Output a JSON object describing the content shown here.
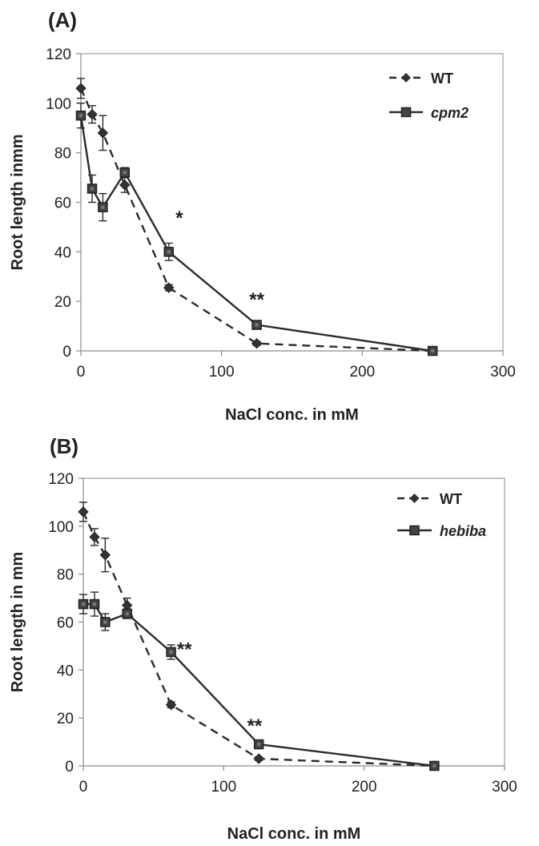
{
  "chart_data": [
    {
      "type": "line",
      "panel_label": "(A)",
      "xlabel": "NaCl conc. in mM",
      "ylabel": "Root length inmm",
      "xlim": [
        0,
        300
      ],
      "ylim": [
        0,
        120
      ],
      "xticks": [
        "0",
        "100",
        "200",
        "300"
      ],
      "yticks": [
        "0",
        "20",
        "40",
        "60",
        "80",
        "100",
        "120"
      ],
      "legend_position": "top-right",
      "series": [
        {
          "name": "WT",
          "italic": false,
          "style": "dashed",
          "marker": "diamond",
          "x": [
            0,
            8,
            15.6,
            31.2,
            62.5,
            125,
            250
          ],
          "y": [
            106,
            95.5,
            88,
            67,
            25.5,
            3,
            0
          ],
          "err": [
            4,
            3.5,
            7,
            3,
            1.2,
            0.8,
            0
          ]
        },
        {
          "name": "cpm2",
          "italic": true,
          "style": "solid",
          "marker": "square",
          "x": [
            0,
            8,
            15.6,
            31.2,
            62.5,
            125,
            250
          ],
          "y": [
            95,
            65.5,
            58,
            72,
            40,
            10.5,
            0
          ],
          "err": [
            5,
            5.5,
            5.5,
            2,
            3.5,
            1,
            0
          ]
        }
      ],
      "annotations": [
        {
          "text": "*",
          "x": 70,
          "y": 55
        },
        {
          "text": "**",
          "x": 125,
          "y": 22
        }
      ]
    },
    {
      "type": "line",
      "panel_label": "(B)",
      "xlabel": "NaCl conc. in mM",
      "ylabel": "Root length in mm",
      "xlim": [
        0,
        300
      ],
      "ylim": [
        0,
        120
      ],
      "xticks": [
        "0",
        "100",
        "200",
        "300"
      ],
      "yticks": [
        "0",
        "20",
        "40",
        "60",
        "80",
        "100",
        "120"
      ],
      "legend_position": "top-right",
      "series": [
        {
          "name": "WT",
          "italic": false,
          "style": "dashed",
          "marker": "diamond",
          "x": [
            0,
            8,
            15.6,
            31.2,
            62.5,
            125,
            250
          ],
          "y": [
            106,
            95.5,
            88,
            67,
            25.5,
            3,
            0
          ],
          "err": [
            4,
            3.5,
            7,
            3,
            1.2,
            0.8,
            0
          ]
        },
        {
          "name": "hebiba",
          "italic": true,
          "style": "solid",
          "marker": "square",
          "x": [
            0,
            8,
            15.6,
            31.2,
            62.5,
            125,
            250
          ],
          "y": [
            67.5,
            67.5,
            60,
            63.5,
            47.5,
            9,
            0
          ],
          "err": [
            4,
            5,
            3.5,
            2,
            3,
            1,
            0
          ]
        }
      ],
      "annotations": [
        {
          "text": "**",
          "x": 72,
          "y": 50
        },
        {
          "text": "**",
          "x": 122,
          "y": 18
        }
      ]
    }
  ]
}
